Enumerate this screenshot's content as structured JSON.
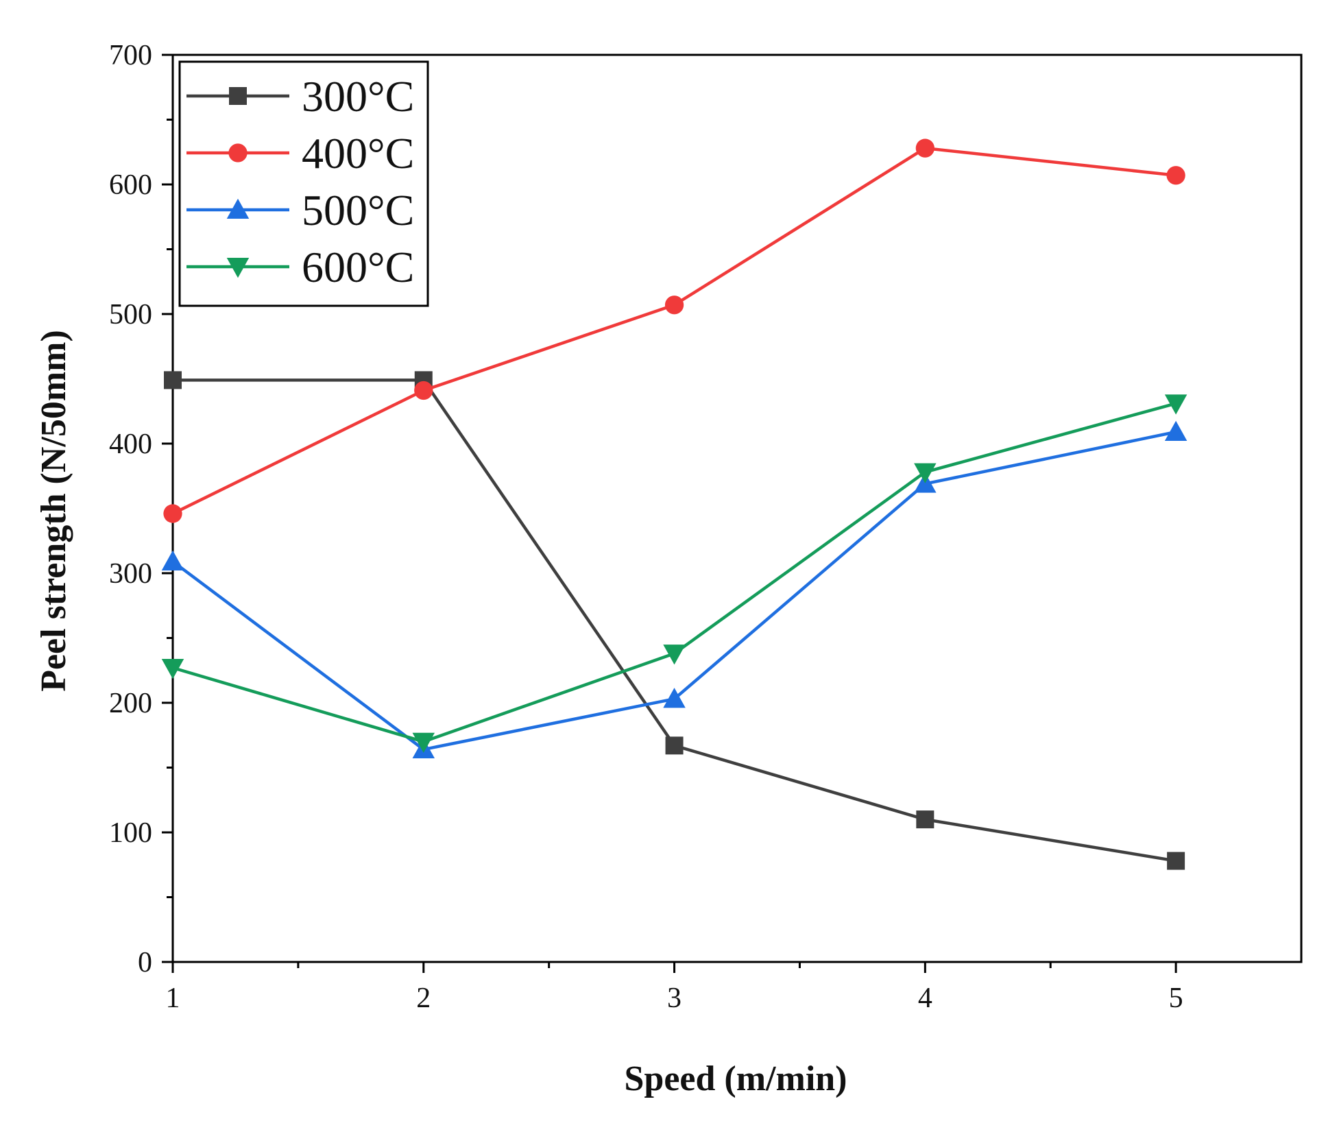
{
  "chart_data": {
    "type": "line",
    "title": "",
    "xlabel": "Speed (m/min)",
    "ylabel": "Peel strength (N/50mm)",
    "xlim": [
      1,
      5.5
    ],
    "ylim": [
      0,
      700
    ],
    "xticks": [
      1,
      2,
      3,
      4,
      5
    ],
    "yticks": [
      0,
      100,
      200,
      300,
      400,
      500,
      600,
      700
    ],
    "grid": false,
    "legend_position": "top-left",
    "x": [
      1,
      2,
      3,
      4,
      5
    ],
    "series": [
      {
        "name": "300°C",
        "values": [
          449,
          449,
          167,
          110,
          78
        ],
        "color": "#3f3f3f",
        "marker": "square"
      },
      {
        "name": "400°C",
        "values": [
          346,
          441,
          507,
          628,
          607
        ],
        "color": "#f03a3a",
        "marker": "circle"
      },
      {
        "name": "500°C",
        "values": [
          309,
          164,
          203,
          369,
          409
        ],
        "color": "#1f6fe0",
        "marker": "triangle-up"
      },
      {
        "name": "600°C",
        "values": [
          227,
          170,
          238,
          378,
          431
        ],
        "color": "#149c5a",
        "marker": "triangle-down"
      }
    ]
  }
}
